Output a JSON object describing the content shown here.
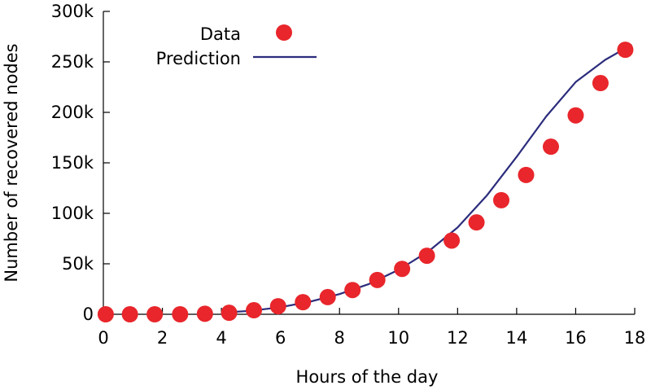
{
  "chart_data": {
    "type": "scatter",
    "xlabel": "Hours of the day",
    "ylabel": "Number of recovered nodes",
    "xlim": [
      0,
      18
    ],
    "ylim": [
      0,
      300000
    ],
    "xticks": [
      0,
      2,
      4,
      6,
      8,
      10,
      12,
      14,
      16,
      18
    ],
    "yticks": [
      0,
      50000,
      100000,
      150000,
      200000,
      250000,
      300000
    ],
    "xtick_labels": [
      "0",
      "2",
      "4",
      "6",
      "8",
      "10",
      "12",
      "14",
      "16",
      "18"
    ],
    "ytick_labels": [
      "0",
      "50k",
      "100k",
      "150k",
      "200k",
      "250k",
      "300k"
    ],
    "grid": false,
    "legend_position": "top-left",
    "series": [
      {
        "name": "Data",
        "style": "points",
        "color": "#e8262b",
        "x": [
          0.08,
          0.9,
          1.74,
          2.6,
          3.44,
          4.26,
          5.1,
          5.92,
          6.76,
          7.6,
          8.44,
          9.28,
          10.12,
          10.96,
          11.8,
          12.64,
          13.48,
          14.32,
          15.16,
          16.0,
          16.84,
          17.68
        ],
        "y": [
          0,
          0,
          0,
          0,
          500,
          1500,
          4000,
          8000,
          12000,
          17000,
          24000,
          34000,
          45000,
          58000,
          73000,
          91000,
          113000,
          138000,
          166000,
          197000,
          229000,
          262000
        ]
      },
      {
        "name": "Prediction",
        "style": "line",
        "color": "#2b2c7c",
        "x": [
          4,
          5,
          6,
          7,
          8,
          9,
          10,
          11,
          12,
          13,
          14,
          15,
          16,
          17,
          17.9
        ],
        "y": [
          1500,
          3500,
          7000,
          12500,
          20000,
          30000,
          44000,
          62000,
          86000,
          118000,
          156000,
          196000,
          230000,
          252000,
          267000
        ]
      }
    ]
  }
}
